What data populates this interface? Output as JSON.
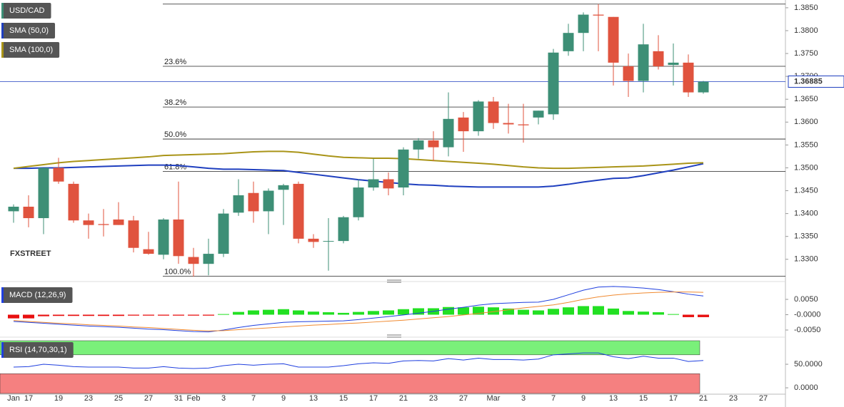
{
  "chart_data": [
    {
      "type": "candlestick",
      "title": "USD/CAD",
      "up_color": "#3d8f76",
      "down_color": "#e0533e",
      "categories": [
        "Jan",
        "17",
        null,
        "19",
        null,
        "23",
        null,
        "25",
        null,
        "27",
        null,
        "31",
        "Feb",
        null,
        "3",
        null,
        "7",
        null,
        "9",
        null,
        "13",
        null,
        "15",
        null,
        "17",
        null,
        "21",
        null,
        "23",
        null,
        "27",
        null,
        "Mar",
        null,
        "3",
        null,
        "7",
        null,
        "9",
        null,
        "13",
        null,
        "15",
        null,
        "17",
        null,
        "21",
        null,
        "23",
        null,
        "27"
      ],
      "open": [
        1.3405,
        1.3415,
        1.339,
        1.35,
        1.3465,
        1.3385,
        1.3377,
        1.3387,
        1.3385,
        1.3322,
        1.331,
        1.3387,
        1.3305,
        1.329,
        1.3312,
        1.3402,
        1.3445,
        1.3405,
        1.3452,
        1.3465,
        1.3345,
        1.334,
        1.334,
        1.3392,
        1.3457,
        1.3475,
        1.3457,
        1.354,
        1.356,
        1.3545,
        1.361,
        1.358,
        1.3645,
        1.3598,
        1.3595,
        1.361,
        1.3617,
        1.3755,
        1.3795,
        1.3835,
        1.383,
        1.3722,
        1.369,
        1.3755,
        1.3725,
        1.373,
        1.3665,
        null,
        null,
        null,
        null
      ],
      "high": [
        1.342,
        1.344,
        1.35,
        1.3522,
        1.347,
        1.34,
        1.341,
        1.3425,
        1.3395,
        1.336,
        1.339,
        1.347,
        1.3325,
        1.3345,
        1.341,
        1.3475,
        1.347,
        1.3455,
        1.3465,
        1.347,
        1.3355,
        1.339,
        1.3395,
        1.3475,
        1.352,
        1.349,
        1.3545,
        1.3565,
        1.358,
        1.3665,
        1.3622,
        1.3648,
        1.3655,
        1.364,
        1.364,
        1.3625,
        1.376,
        1.3815,
        1.384,
        1.3858,
        1.383,
        1.375,
        1.3815,
        1.379,
        1.3772,
        1.3748,
        1.369,
        null,
        null,
        null,
        null
      ],
      "low": [
        1.338,
        1.337,
        1.3355,
        1.3465,
        1.338,
        1.3345,
        1.335,
        1.3375,
        1.3315,
        1.331,
        1.33,
        1.329,
        1.3262,
        1.3265,
        1.3305,
        1.3395,
        1.338,
        1.3355,
        1.3375,
        1.3335,
        1.3325,
        1.3275,
        1.3335,
        1.3385,
        1.345,
        1.344,
        1.344,
        1.352,
        1.3515,
        1.3525,
        1.3535,
        1.357,
        1.3585,
        1.3575,
        1.3555,
        1.3595,
        1.3605,
        1.3745,
        1.3755,
        1.3755,
        1.368,
        1.3655,
        1.3665,
        1.3715,
        1.368,
        1.3655,
        1.3662,
        null,
        null,
        null,
        null
      ],
      "close": [
        1.3415,
        1.339,
        1.35,
        1.347,
        1.3385,
        1.3375,
        1.3375,
        1.3375,
        1.3325,
        1.3312,
        1.3387,
        1.3307,
        1.329,
        1.3312,
        1.34,
        1.344,
        1.3405,
        1.345,
        1.3462,
        1.3345,
        1.3338,
        1.334,
        1.3392,
        1.3457,
        1.3475,
        1.3455,
        1.354,
        1.356,
        1.3545,
        1.3607,
        1.358,
        1.3645,
        1.3598,
        1.3595,
        1.3593,
        1.3625,
        1.3752,
        1.3795,
        1.3835,
        1.3833,
        1.373,
        1.369,
        1.377,
        1.3722,
        1.373,
        1.3665,
        1.36885,
        null,
        null,
        null,
        null
      ],
      "series": [
        {
          "name": "SMA (50,0)",
          "color": "#1f3fbf",
          "values": [
            1.3499,
            1.3499,
            1.35,
            1.35,
            1.3501,
            1.3502,
            1.3503,
            1.3504,
            1.3505,
            1.3506,
            1.3506,
            1.3505,
            1.3502,
            1.3499,
            1.3497,
            1.3497,
            1.3496,
            1.3495,
            1.3494,
            1.349,
            1.3486,
            1.3482,
            1.3478,
            1.3474,
            1.3471,
            1.3468,
            1.3465,
            1.3463,
            1.3462,
            1.346,
            1.3459,
            1.3458,
            1.3458,
            1.3458,
            1.3458,
            1.3458,
            1.346,
            1.3464,
            1.3469,
            1.3473,
            1.3477,
            1.3478,
            1.3483,
            1.3489,
            1.3495,
            1.3502,
            1.3509,
            null,
            null,
            null,
            null
          ]
        },
        {
          "name": "SMA (100,0)",
          "color": "#a99418",
          "values": [
            1.3499,
            1.3503,
            1.3507,
            1.3511,
            1.3514,
            1.3516,
            1.3518,
            1.352,
            1.3522,
            1.3524,
            1.3527,
            1.3528,
            1.3529,
            1.353,
            1.3531,
            1.3533,
            1.3535,
            1.3536,
            1.3536,
            1.3534,
            1.353,
            1.3526,
            1.3523,
            1.3522,
            1.3521,
            1.3521,
            1.352,
            1.3518,
            1.3516,
            1.3514,
            1.3512,
            1.351,
            1.3508,
            1.3505,
            1.3502,
            1.35,
            1.3499,
            1.3499,
            1.35,
            1.3501,
            1.3502,
            1.3503,
            1.3504,
            1.3506,
            1.3508,
            1.351,
            1.3511,
            null,
            null,
            null,
            null
          ]
        }
      ],
      "fib_levels": [
        {
          "value": 1.3858
        },
        {
          "value": 1.3722,
          "label": "23.6%"
        },
        {
          "value": 1.3633,
          "label": "38.2%"
        },
        {
          "value": 1.3563,
          "label": "50.0%"
        },
        {
          "value": 1.3492,
          "label": "61.8%"
        },
        {
          "value": 1.3263,
          "label": "100.0%"
        }
      ],
      "last_price": 1.36885,
      "logo": [
        "FX",
        "STREET"
      ],
      "ylim": [
        1.3256,
        1.3867
      ],
      "yticks": [
        {
          "value": 1.33,
          "label": "1.3300"
        },
        {
          "value": 1.335,
          "label": "1.3350"
        },
        {
          "value": 1.34,
          "label": "1.3400"
        },
        {
          "value": 1.345,
          "label": "1.3450"
        },
        {
          "value": 1.35,
          "label": "1.3500"
        },
        {
          "value": 1.355,
          "label": "1.3550"
        },
        {
          "value": 1.36,
          "label": "1.3600"
        },
        {
          "value": 1.365,
          "label": "1.3650"
        },
        {
          "value": 1.37,
          "label": "1.3700"
        },
        {
          "value": 1.375,
          "label": "1.3750"
        },
        {
          "value": 1.38,
          "label": "1.3800"
        },
        {
          "value": 1.385,
          "label": "1.3850"
        }
      ]
    },
    {
      "type": "macd",
      "title": "MACD (12,26,9)",
      "up_color": "#22e022",
      "down_color": "#e81010",
      "series": [
        {
          "color": "#1f3fdf",
          "values": [
            -0.0022,
            -0.0025,
            -0.0028,
            -0.0031,
            -0.0034,
            -0.0037,
            -0.0039,
            -0.0041,
            -0.0044,
            -0.0047,
            -0.0049,
            -0.0052,
            -0.0055,
            -0.0056,
            -0.005,
            -0.0042,
            -0.0035,
            -0.003,
            -0.0025,
            -0.0023,
            -0.0022,
            -0.0021,
            -0.002,
            -0.0016,
            -0.0011,
            -0.0006,
            -0.0001,
            0.0005,
            0.0011,
            0.0018,
            0.0024,
            0.0031,
            0.0036,
            0.0038,
            0.004,
            0.0041,
            0.005,
            0.0065,
            0.008,
            0.009,
            0.0092,
            0.009,
            0.0087,
            0.0082,
            0.0075,
            0.0067,
            0.0061,
            null,
            null,
            null,
            null
          ]
        },
        {
          "color": "#f08a30",
          "values": [
            -0.0019,
            -0.0022,
            -0.0025,
            -0.0028,
            -0.003,
            -0.0033,
            -0.0035,
            -0.0037,
            -0.004,
            -0.0042,
            -0.0045,
            -0.0048,
            -0.0051,
            -0.0053,
            -0.0052,
            -0.0049,
            -0.0046,
            -0.0043,
            -0.004,
            -0.0037,
            -0.0034,
            -0.0032,
            -0.0029,
            -0.0027,
            -0.0024,
            -0.0021,
            -0.0018,
            -0.0014,
            -0.001,
            -0.0006,
            -0.0001,
            0.0004,
            0.001,
            0.0016,
            0.0022,
            0.0027,
            0.0032,
            0.004,
            0.005,
            0.0058,
            0.0064,
            0.0068,
            0.0071,
            0.0073,
            0.0074,
            0.0074,
            0.0073,
            null,
            null,
            null,
            null
          ]
        }
      ],
      "histogram": [
        -0.0012,
        -0.0012,
        -0.0005,
        -0.0004,
        -0.0004,
        -0.0004,
        -0.0004,
        -0.0004,
        -0.0003,
        -0.0003,
        -0.0003,
        -0.0003,
        -0.0003,
        -0.0003,
        0.0002,
        0.0009,
        0.0014,
        0.0016,
        0.0018,
        0.0014,
        0.001,
        0.0008,
        0.0006,
        0.0009,
        0.0012,
        0.0014,
        0.0018,
        0.0021,
        0.0021,
        0.0025,
        0.0024,
        0.0026,
        0.0024,
        0.002,
        0.0016,
        0.0014,
        0.0019,
        0.0024,
        0.0028,
        0.0028,
        0.002,
        0.0012,
        0.001,
        0.0008,
        0.0002,
        -0.0008,
        -0.0008,
        null,
        null,
        null,
        null
      ],
      "ylim": [
        -0.00663,
        0.00965
      ],
      "yticks": [
        {
          "value": 0.005,
          "label": "0.0050"
        },
        {
          "value": 0,
          "label": "-0.0000"
        },
        {
          "value": -0.005,
          "label": "-0.0050"
        }
      ]
    },
    {
      "type": "rsi",
      "title": "RSI (14,70,30,1)",
      "overbought": 70,
      "oversold": 30,
      "overbought_color": "#7af07a",
      "oversold_color": "#f58080",
      "series": [
        {
          "color": "#1f3fdf",
          "values": [
            44,
            45,
            50,
            48,
            45,
            44,
            44,
            44,
            42,
            42,
            45,
            42,
            41,
            42,
            47,
            50,
            48,
            50,
            51,
            44,
            44,
            44,
            47,
            51,
            53,
            52,
            57,
            58,
            57,
            62,
            59,
            63,
            60,
            60,
            59,
            61,
            70,
            72,
            74,
            74,
            66,
            62,
            67,
            63,
            63,
            56,
            58,
            null,
            null,
            null,
            null
          ]
        }
      ],
      "ylim": [
        -12,
        100
      ],
      "yticks": [
        {
          "value": 50,
          "label": "50.0000"
        },
        {
          "value": 0,
          "label": "0.0000"
        }
      ]
    }
  ]
}
